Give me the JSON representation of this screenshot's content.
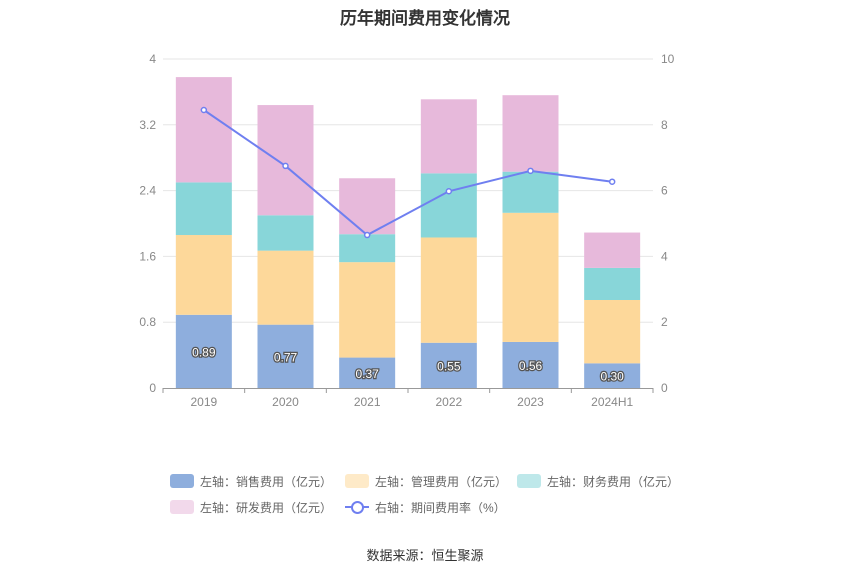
{
  "chart_data": {
    "type": "bar",
    "title": "历年期间费用变化情况",
    "categories": [
      "2019",
      "2020",
      "2021",
      "2022",
      "2023",
      "2024H1"
    ],
    "y_left": {
      "ticks": [
        "0",
        "0.8",
        "1.6",
        "2.4",
        "3.2",
        "4"
      ],
      "range": [
        0,
        4
      ]
    },
    "y_right": {
      "ticks": [
        "0",
        "2",
        "4",
        "6",
        "8",
        "10"
      ],
      "range": [
        0,
        10
      ]
    },
    "series": [
      {
        "name": "左轴：销售费用（亿元）",
        "kind": "bar",
        "axis": "left",
        "color": "#8eaedd",
        "values": [
          0.89,
          0.77,
          0.37,
          0.55,
          0.56,
          0.3
        ],
        "labels": [
          "0.89",
          "0.77",
          "0.37",
          "0.55",
          "0.56",
          "0.30"
        ]
      },
      {
        "name": "左轴：管理费用（亿元）",
        "kind": "bar",
        "axis": "left",
        "color": "#fdd89a",
        "values": [
          0.97,
          0.9,
          1.16,
          1.28,
          1.57,
          0.77
        ]
      },
      {
        "name": "左轴：财务费用（亿元）",
        "kind": "bar",
        "axis": "left",
        "color": "#88d6d9",
        "values": [
          0.64,
          0.43,
          0.34,
          0.78,
          0.5,
          0.39
        ]
      },
      {
        "name": "左轴：研发费用（亿元）",
        "kind": "bar",
        "axis": "left",
        "color": "#e7b9db",
        "values": [
          1.28,
          1.34,
          0.68,
          0.9,
          0.93,
          0.43
        ]
      },
      {
        "name": "右轴：期间费用率（%）",
        "kind": "line",
        "axis": "right",
        "color": "#6f7ff0",
        "values": [
          8.45,
          6.75,
          4.65,
          5.98,
          6.6,
          6.27
        ]
      }
    ],
    "grid": true,
    "legend_position": "bottom"
  },
  "source": "数据来源：恒生聚源"
}
